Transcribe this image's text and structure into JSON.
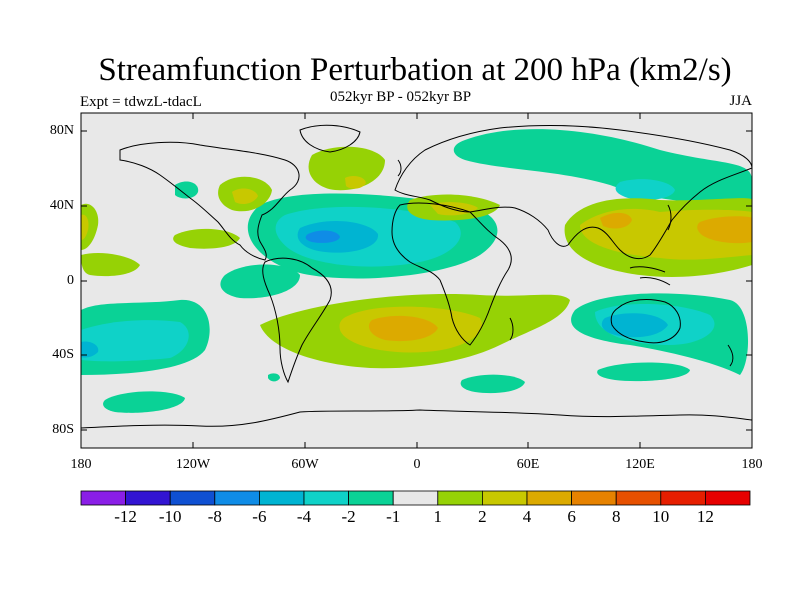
{
  "title": "Streamfunction Perturbation at 200 hPa (km2/s)",
  "subtitle_left": "Expt = tdwzL-tdacL",
  "subtitle_center": "052kyr BP - 052kyr BP",
  "subtitle_right": "JJA",
  "axes": {
    "lat_labels": [
      "80N",
      "40N",
      "0",
      "40S",
      "80S"
    ],
    "lon_labels": [
      "180",
      "120W",
      "60W",
      "0",
      "60E",
      "120E",
      "180"
    ]
  },
  "colorbar": {
    "labels": [
      "-12",
      "-10",
      "-8",
      "-6",
      "-4",
      "-2",
      "-1",
      "1",
      "2",
      "4",
      "6",
      "8",
      "10",
      "12"
    ],
    "colors": [
      "#8a1ee6",
      "#3214d2",
      "#0f50d2",
      "#0f8ce6",
      "#00b4d2",
      "#0fd2c8",
      "#0ad296",
      "#e8e8e8",
      "#96d205",
      "#c8c800",
      "#dcaa00",
      "#e68200",
      "#e65000",
      "#e61e00",
      "#e60000"
    ]
  },
  "chart_data": {
    "type": "contour-map",
    "variable": "Streamfunction Perturbation at 200 hPa",
    "units": "km2/s",
    "season": "JJA",
    "levels": [
      -12,
      -10,
      -8,
      -6,
      -4,
      -2,
      -1,
      1,
      2,
      4,
      6,
      8,
      10,
      12
    ],
    "lon_range": [
      -180,
      180
    ],
    "lat_range": [
      -90,
      90
    ]
  }
}
